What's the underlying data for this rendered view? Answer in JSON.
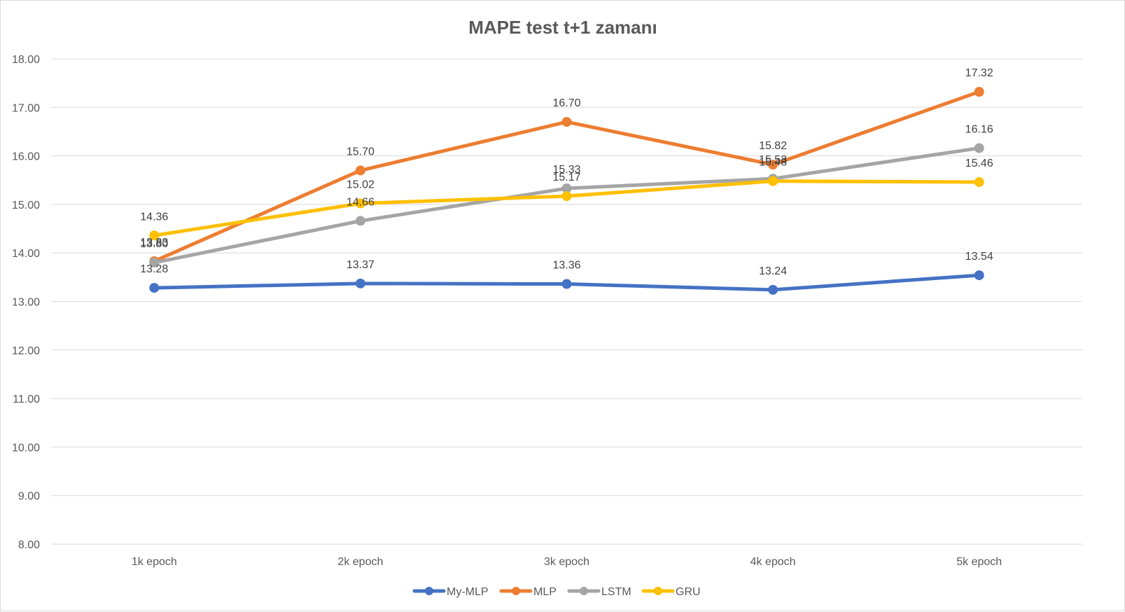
{
  "chart_data": {
    "type": "line",
    "title": "MAPE test t+1  zamanı",
    "categories": [
      "1k epoch",
      "2k epoch",
      "3k epoch",
      "4k epoch",
      "5k epoch"
    ],
    "ylim": [
      8,
      18
    ],
    "yticks": [
      "8.00",
      "9.00",
      "10.00",
      "11.00",
      "12.00",
      "13.00",
      "14.00",
      "15.00",
      "16.00",
      "17.00",
      "18.00"
    ],
    "grid": true,
    "legend_position": "bottom",
    "series": [
      {
        "name": "My-MLP",
        "color": "#4472c4",
        "values": [
          13.28,
          13.37,
          13.36,
          13.24,
          13.54
        ],
        "labels": [
          "13.28",
          "13.37",
          "13.36",
          "13.24",
          "13.54"
        ]
      },
      {
        "name": "MLP",
        "color": "#ed7d31",
        "values": [
          13.83,
          15.7,
          16.7,
          15.82,
          17.32
        ],
        "labels": [
          "13.83",
          "15.70",
          "16.70",
          "15.82",
          "17.32"
        ]
      },
      {
        "name": "LSTM",
        "color": "#a5a5a5",
        "values": [
          13.8,
          14.66,
          15.33,
          15.53,
          16.16
        ],
        "labels": [
          "13.80",
          "14.66",
          "15.33",
          "15.53",
          "16.16"
        ]
      },
      {
        "name": "GRU",
        "color": "#ffc000",
        "values": [
          14.36,
          15.02,
          15.17,
          15.48,
          15.46
        ],
        "labels": [
          "14.36",
          "15.02",
          "15.17",
          "15.48",
          "15.46"
        ]
      }
    ]
  }
}
